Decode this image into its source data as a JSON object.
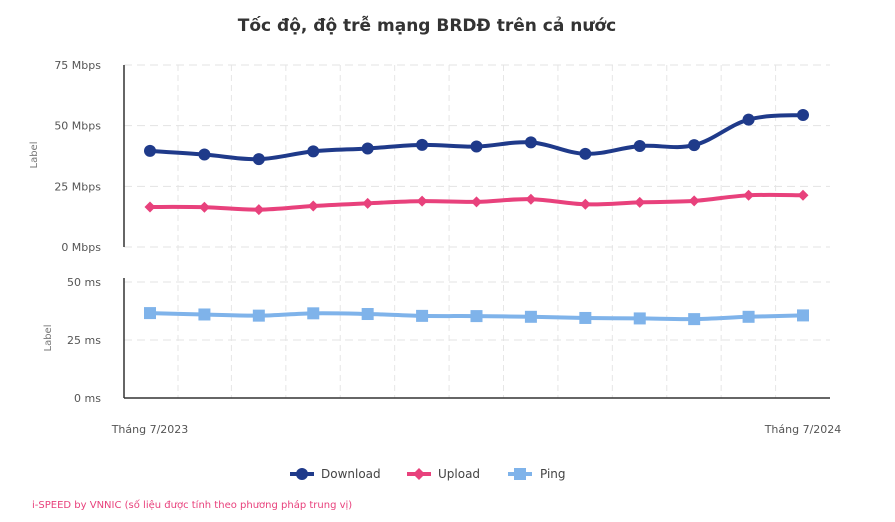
{
  "chart_data": {
    "type": "line",
    "title": "Tốc độ, độ trễ mạng BRDĐ trên cả nước",
    "x_labels_shown": [
      "Tháng 7/2023",
      "Tháng 7/2024"
    ],
    "x_count": 13,
    "panels": [
      {
        "id": "speed",
        "ylabel": "Label",
        "ylim": [
          0,
          75
        ],
        "ticks": [
          {
            "value": 0,
            "label": "0 Mbps"
          },
          {
            "value": 25,
            "label": "25 Mbps"
          },
          {
            "value": 50,
            "label": "50 Mbps"
          },
          {
            "value": 75,
            "label": "75 Mbps"
          }
        ],
        "series": [
          {
            "name": "Download",
            "color": "#1f3a8a",
            "marker": "circle",
            "values": [
              39.6,
              38.1,
              36.2,
              39.4,
              40.6,
              42.1,
              41.4,
              43.1,
              38.4,
              41.6,
              42.0,
              52.5,
              54.4
            ]
          },
          {
            "name": "Upload",
            "color": "#e8417c",
            "marker": "diamond",
            "values": [
              16.5,
              16.4,
              15.4,
              16.9,
              18.0,
              18.9,
              18.6,
              19.7,
              17.6,
              18.4,
              19.0,
              21.3,
              21.3
            ]
          }
        ]
      },
      {
        "id": "latency",
        "ylabel": "Label",
        "ylim": [
          0,
          50
        ],
        "ticks": [
          {
            "value": 0,
            "label": "0 ms"
          },
          {
            "value": 25,
            "label": "25 ms"
          },
          {
            "value": 50,
            "label": "50 ms"
          }
        ],
        "series": [
          {
            "name": "Ping",
            "color": "#7fb3ea",
            "marker": "square",
            "values": [
              36.6,
              36.0,
              35.5,
              36.5,
              36.2,
              35.4,
              35.3,
              35.0,
              34.5,
              34.3,
              34.0,
              35.0,
              35.6
            ]
          }
        ]
      }
    ],
    "legend": [
      "Download",
      "Upload",
      "Ping"
    ],
    "legend_position": "bottom-center",
    "source": "i-SPEED by VNNIC (số liệu được tính theo phương pháp trung vị)"
  }
}
